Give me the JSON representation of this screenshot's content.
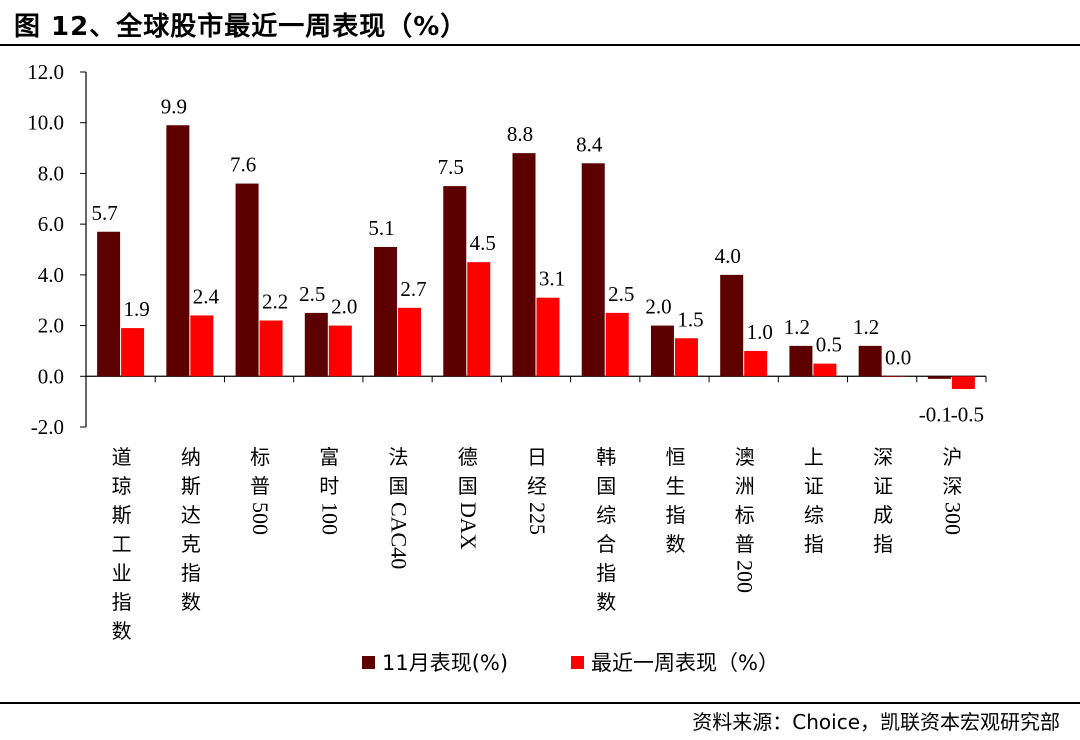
{
  "title": "图 12、全球股市最近一周表现（%）",
  "source": "资料来源：Choice，凯联资本宏观研究部",
  "chart_data": {
    "type": "bar",
    "ylim": [
      -2.0,
      12.0
    ],
    "yticks": [
      -2.0,
      0.0,
      2.0,
      4.0,
      6.0,
      8.0,
      10.0,
      12.0
    ],
    "ytick_labels": [
      "-2.0",
      "0.0",
      "2.0",
      "4.0",
      "6.0",
      "8.0",
      "10.0",
      "12.0"
    ],
    "categories": [
      "道琼斯工业指数",
      "纳斯达克指数",
      "标普500",
      "富时100",
      "法国CAC40",
      "德国DAX",
      "日经225",
      "韩国综合指数",
      "恒生指数",
      "澳洲标普200",
      "上证综指",
      "深证成指",
      "沪深300"
    ],
    "series": [
      {
        "name": "11月表现(%)",
        "color": "#5c0000",
        "values": [
          5.7,
          9.9,
          7.6,
          2.5,
          5.1,
          7.5,
          8.8,
          8.4,
          2.0,
          4.0,
          1.2,
          1.2,
          -0.1
        ],
        "labels": [
          "5.7",
          "9.9",
          "7.6",
          "2.5",
          "5.1",
          "7.5",
          "8.8",
          "8.4",
          "2.0",
          "4.0",
          "1.2",
          "1.2",
          "-0.1"
        ]
      },
      {
        "name": "最近一周表现（%）",
        "color": "#ff0000",
        "values": [
          1.9,
          2.4,
          2.2,
          2.0,
          2.7,
          4.5,
          3.1,
          2.5,
          1.5,
          1.0,
          0.5,
          0.0,
          -0.5
        ],
        "labels": [
          "1.9",
          "2.4",
          "2.2",
          "2.0",
          "2.7",
          "4.5",
          "3.1",
          "2.5",
          "1.5",
          "1.0",
          "0.5",
          "0.0",
          "-0.5"
        ]
      }
    ],
    "grid": false,
    "legend": "bottom"
  }
}
